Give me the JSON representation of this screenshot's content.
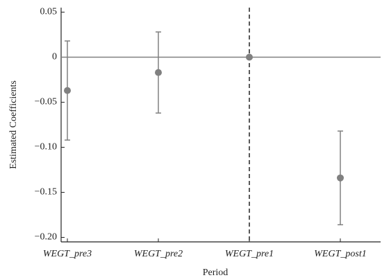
{
  "chart_data": {
    "type": "errorbar",
    "x_label": "Period",
    "y_label": "Estimated Coefficients",
    "categories": [
      "WEGT_pre3",
      "WEGT_pre2",
      "WEGT_pre1",
      "WEGT_post1"
    ],
    "values": [
      -0.037,
      -0.017,
      0,
      -0.134
    ],
    "lower": [
      -0.092,
      -0.062,
      0,
      -0.186
    ],
    "upper": [
      0.018,
      0.028,
      0,
      -0.082
    ],
    "color": "#808080",
    "ylim": [
      -0.205,
      0.055
    ],
    "yticks": [
      0.05,
      0,
      {
        "value": -0.05,
        "label": "−0.05"
      },
      {
        "value": -0.1,
        "label": "−0.10"
      },
      {
        "value": -0.15,
        "label": "−0.15"
      },
      {
        "value": -0.2,
        "label": "−0.20"
      }
    ],
    "hline": 0,
    "vline_category": 2
  }
}
